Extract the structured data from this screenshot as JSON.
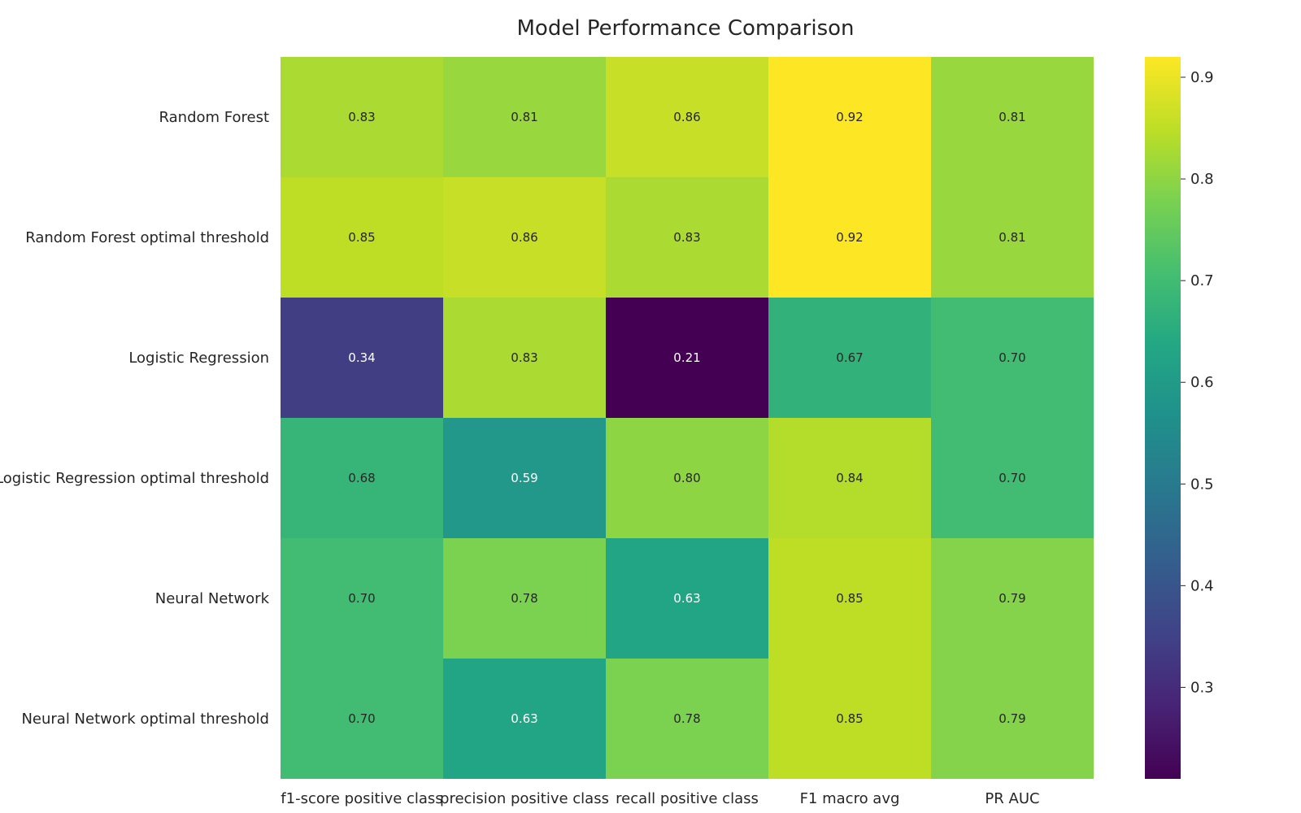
{
  "chart_data": {
    "type": "heatmap",
    "title": "Model Performance Comparison",
    "xlabel": "",
    "ylabel": "",
    "columns": [
      "f1-score positive class",
      "precision positive class",
      "recall positive class",
      "F1 macro avg",
      "PR AUC"
    ],
    "rows": [
      "Random Forest",
      "Random Forest optimal threshold",
      "Logistic Regression",
      "Logistic Regression optimal threshold",
      "Neural Network",
      "Neural Network optimal threshold"
    ],
    "values": [
      [
        0.83,
        0.81,
        0.86,
        0.92,
        0.81
      ],
      [
        0.85,
        0.86,
        0.83,
        0.92,
        0.81
      ],
      [
        0.34,
        0.83,
        0.21,
        0.67,
        0.7
      ],
      [
        0.68,
        0.59,
        0.8,
        0.84,
        0.7
      ],
      [
        0.7,
        0.78,
        0.63,
        0.85,
        0.79
      ],
      [
        0.7,
        0.63,
        0.78,
        0.85,
        0.79
      ]
    ],
    "colormap": "viridis",
    "vmin": 0.21,
    "vmax": 0.92,
    "colorbar_ticks": [
      "0.3",
      "0.4",
      "0.5",
      "0.6",
      "0.7",
      "0.8",
      "0.9"
    ],
    "colors": {
      "low": "#440154",
      "high": "#fde725",
      "text_light": "#ffffff",
      "text_dark": "#262626",
      "label": "#262626"
    }
  }
}
